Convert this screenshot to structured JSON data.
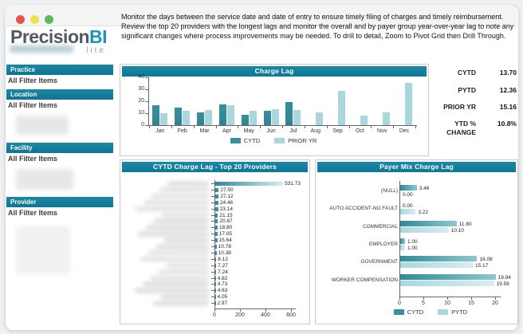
{
  "window": {
    "traffic_lights": [
      {
        "name": "close",
        "color": "#e4554e"
      },
      {
        "name": "minimize",
        "color": "#f2df50"
      },
      {
        "name": "maximize",
        "color": "#5cba5d"
      }
    ]
  },
  "logo": {
    "name": "Precision",
    "accent": "BI",
    "tagline": "lite"
  },
  "sidebar": {
    "sections": [
      {
        "title": "Practice",
        "item": "All Filter Items"
      },
      {
        "title": "Location",
        "item": "All Filter Items"
      },
      {
        "title": "Facility",
        "item": "All Filter Items"
      },
      {
        "title": "Provider",
        "item": "All Filter Items"
      }
    ]
  },
  "intro_text": "Monitor the days between the service date and date of entry to ensure timely filing of charges and timely reimbursement. Review the top 20 providers with the longest lags and monitor the overall and by payer group year-over-year lag to note any significant changes where process improvements may be needed.  To drill to detail, Zoom to Pivot Grid then Drill Through.",
  "kpi_panel": {
    "rows": [
      {
        "label": "CYTD",
        "value": "13.70"
      },
      {
        "label": "PYTD",
        "value": "12.36"
      },
      {
        "label": "PRIOR YR",
        "value": "15.16"
      },
      {
        "label": "YTD % CHANGE",
        "value": "10.8%"
      }
    ]
  },
  "colors": {
    "header_teal": "#12809f",
    "series_dark": "#3a8f9d",
    "series_light": "#aad7de",
    "gradient_dark_start": "#2e8b99",
    "gradient_dark_end": "#8ec8d2",
    "gradient_light_start": "#a9d7de",
    "gradient_light_end": "#d8edf1"
  },
  "chart_data": [
    {
      "id": "charge_lag_monthly",
      "type": "bar",
      "title": "Charge Lag",
      "categories": [
        "Jan",
        "Feb",
        "Mar",
        "Apr",
        "May",
        "Jun",
        "Jul",
        "Aug",
        "Sep",
        "Oct",
        "Nov",
        "Dec"
      ],
      "series": [
        {
          "name": "CYTD",
          "values": [
            17,
            14.5,
            11,
            17.5,
            9,
            12,
            19.5,
            0,
            0,
            0,
            0,
            0
          ]
        },
        {
          "name": "PRIOR YR",
          "values": [
            10,
            12,
            13,
            17,
            12,
            13.5,
            13,
            11,
            28.5,
            8,
            11,
            35.5
          ]
        }
      ],
      "ylim": [
        0,
        40
      ],
      "yticks": [
        0,
        10,
        20,
        30,
        40
      ],
      "grid": false,
      "legend_position": "bottom"
    },
    {
      "id": "top20_providers",
      "type": "bar",
      "orientation": "horizontal",
      "title": "CYTD Charge Lag - Top 20 Providers",
      "categories_redacted": true,
      "values": [
        531.73,
        27.5,
        27.12,
        24.46,
        23.14,
        21.15,
        20.87,
        18.8,
        17.05,
        15.64,
        10.78,
        10.38,
        8.12,
        7.27,
        7.24,
        4.82,
        4.73,
        4.63,
        4.05,
        2.97
      ],
      "xlim": [
        0,
        600
      ],
      "xticks": [
        0,
        200,
        400,
        600
      ],
      "value_labels_shown": true
    },
    {
      "id": "payer_mix",
      "type": "bar",
      "orientation": "horizontal",
      "title": "Payer Mix Charge Lag",
      "categories": [
        "(NULL)",
        "AUTO ACCIDENT-NO FAULT",
        "COMMERCIAL",
        "EMPLOYER",
        "GOVERNMENT",
        "WORKER COMPENSATION"
      ],
      "series": [
        {
          "name": "CYTD",
          "values": [
            3.46,
            0.0,
            11.8,
            1.0,
            16.08,
            19.94
          ]
        },
        {
          "name": "PYTD",
          "values": [
            0.0,
            3.22,
            10.1,
            1.0,
            15.17,
            19.59
          ]
        }
      ],
      "xlim": [
        0,
        20
      ],
      "xticks": [
        0,
        5,
        10,
        15,
        20
      ],
      "legend_position": "bottom",
      "value_labels_shown": true
    }
  ]
}
